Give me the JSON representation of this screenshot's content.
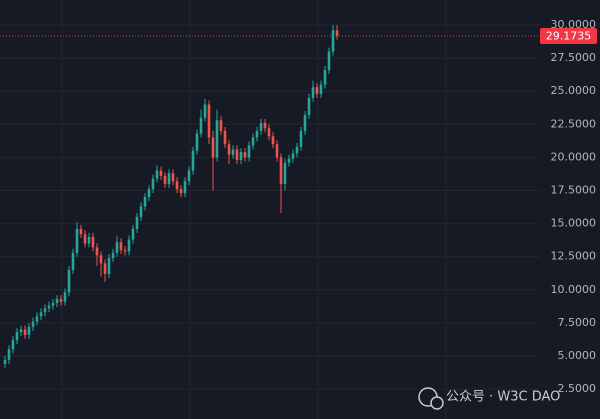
{
  "chart_data": {
    "type": "candlestick",
    "up_color": "#26a69a",
    "down_color": "#ef5350",
    "open": [
      4.4,
      4.7,
      5.5,
      6.2,
      6.8,
      7.0,
      6.6,
      7.2,
      7.6,
      8.0,
      8.3,
      8.6,
      8.8,
      9.0,
      9.3,
      9.1,
      9.8,
      11.5,
      12.8,
      14.6,
      14.2,
      13.5,
      14.0,
      13.2,
      12.6,
      12.0,
      11.2,
      12.4,
      12.8,
      13.6,
      13.0,
      12.9,
      13.8,
      14.6,
      15.5,
      16.3,
      17.0,
      17.6,
      18.4,
      19.0,
      18.6,
      18.0,
      18.8,
      18.2,
      17.6,
      17.3,
      18.2,
      19.0,
      20.5,
      21.8,
      23.0,
      24.0,
      21.5,
      20.0,
      22.8,
      22.0,
      21.0,
      20.2,
      20.6,
      19.8,
      20.4,
      20.0,
      20.9,
      21.5,
      22.0,
      22.6,
      22.2,
      21.6,
      21.0,
      20.0,
      18.0,
      19.6,
      19.9,
      20.3,
      20.8,
      22.0,
      23.2,
      24.5,
      25.3,
      24.8,
      25.5,
      26.6,
      28.0,
      29.6
    ],
    "high": [
      5.0,
      5.8,
      6.5,
      7.1,
      7.3,
      7.3,
      7.5,
      7.9,
      8.3,
      8.6,
      8.9,
      9.1,
      9.3,
      9.6,
      9.6,
      10.1,
      11.8,
      13.1,
      15.1,
      14.9,
      14.5,
      14.3,
      14.3,
      13.5,
      12.9,
      12.3,
      12.7,
      13.1,
      14.1,
      13.9,
      13.3,
      14.1,
      14.9,
      15.8,
      16.6,
      17.3,
      17.9,
      18.7,
      19.4,
      19.3,
      18.9,
      19.1,
      19.1,
      18.5,
      17.9,
      18.5,
      19.3,
      20.8,
      22.1,
      23.6,
      24.4,
      24.3,
      22.0,
      23.6,
      23.1,
      22.3,
      21.3,
      20.9,
      20.9,
      20.7,
      20.7,
      21.2,
      21.8,
      22.3,
      22.9,
      22.9,
      22.5,
      21.9,
      21.3,
      20.3,
      19.9,
      20.2,
      20.6,
      21.1,
      22.3,
      23.5,
      24.8,
      25.8,
      25.6,
      25.8,
      26.9,
      28.3,
      30.0,
      30.0
    ],
    "low": [
      4.1,
      4.4,
      5.2,
      5.9,
      6.5,
      6.3,
      6.3,
      6.9,
      7.3,
      7.7,
      8.0,
      8.3,
      8.5,
      8.7,
      8.8,
      8.8,
      9.5,
      11.2,
      12.5,
      13.9,
      13.2,
      13.2,
      12.9,
      11.8,
      11.0,
      10.6,
      10.9,
      12.1,
      12.5,
      12.7,
      12.6,
      12.6,
      13.5,
      14.3,
      15.2,
      16.0,
      16.7,
      17.3,
      18.1,
      18.3,
      17.7,
      17.7,
      17.9,
      17.3,
      17.0,
      17.0,
      17.9,
      18.7,
      20.2,
      21.5,
      22.7,
      21.0,
      17.5,
      19.7,
      21.7,
      20.7,
      19.5,
      19.9,
      19.5,
      19.5,
      19.7,
      19.7,
      20.6,
      21.2,
      21.7,
      21.9,
      21.3,
      20.7,
      19.7,
      15.8,
      17.5,
      19.3,
      19.6,
      20.0,
      20.5,
      21.7,
      22.9,
      24.2,
      24.5,
      24.5,
      25.2,
      26.3,
      27.7,
      28.9
    ],
    "close": [
      4.7,
      5.5,
      6.2,
      6.8,
      7.0,
      6.6,
      7.2,
      7.6,
      8.0,
      8.3,
      8.6,
      8.8,
      9.0,
      9.3,
      9.1,
      9.8,
      11.5,
      12.8,
      14.6,
      14.2,
      13.5,
      14.0,
      13.2,
      12.6,
      12.0,
      11.2,
      12.4,
      12.8,
      13.6,
      13.0,
      12.9,
      13.8,
      14.6,
      15.5,
      16.3,
      17.0,
      17.6,
      18.4,
      19.0,
      18.6,
      18.0,
      18.8,
      18.2,
      17.6,
      17.3,
      18.2,
      19.0,
      20.5,
      21.8,
      23.0,
      24.0,
      21.5,
      20.0,
      22.8,
      22.0,
      21.0,
      20.2,
      20.6,
      19.8,
      20.4,
      20.0,
      20.9,
      21.5,
      22.0,
      22.6,
      22.2,
      21.6,
      21.0,
      20.0,
      18.0,
      19.6,
      19.9,
      20.3,
      20.8,
      22.0,
      23.2,
      24.5,
      25.3,
      24.8,
      25.5,
      26.6,
      28.0,
      29.6,
      29.17
    ],
    "ylim": [
      0.24,
      31.89
    ],
    "yticks": [
      {
        "value": 30,
        "label": "30.0000"
      },
      {
        "value": 27.5,
        "label": "27.5000"
      },
      {
        "value": 25,
        "label": "25.0000"
      },
      {
        "value": 22.5,
        "label": "22.5000"
      },
      {
        "value": 20,
        "label": "20.0000"
      },
      {
        "value": 17.5,
        "label": "17.5000"
      },
      {
        "value": 15,
        "label": "15.0000"
      },
      {
        "value": 12.5,
        "label": "12.5000"
      },
      {
        "value": 10,
        "label": "10.0000"
      },
      {
        "value": 7.5,
        "label": "7.5000"
      },
      {
        "value": 5,
        "label": "5.0000"
      },
      {
        "value": 2.5,
        "label": "2.5000"
      }
    ],
    "grid": true,
    "last_price": 29.1735,
    "last_price_color": "#f23645",
    "watermark": "公众号 · W3C DAO"
  }
}
